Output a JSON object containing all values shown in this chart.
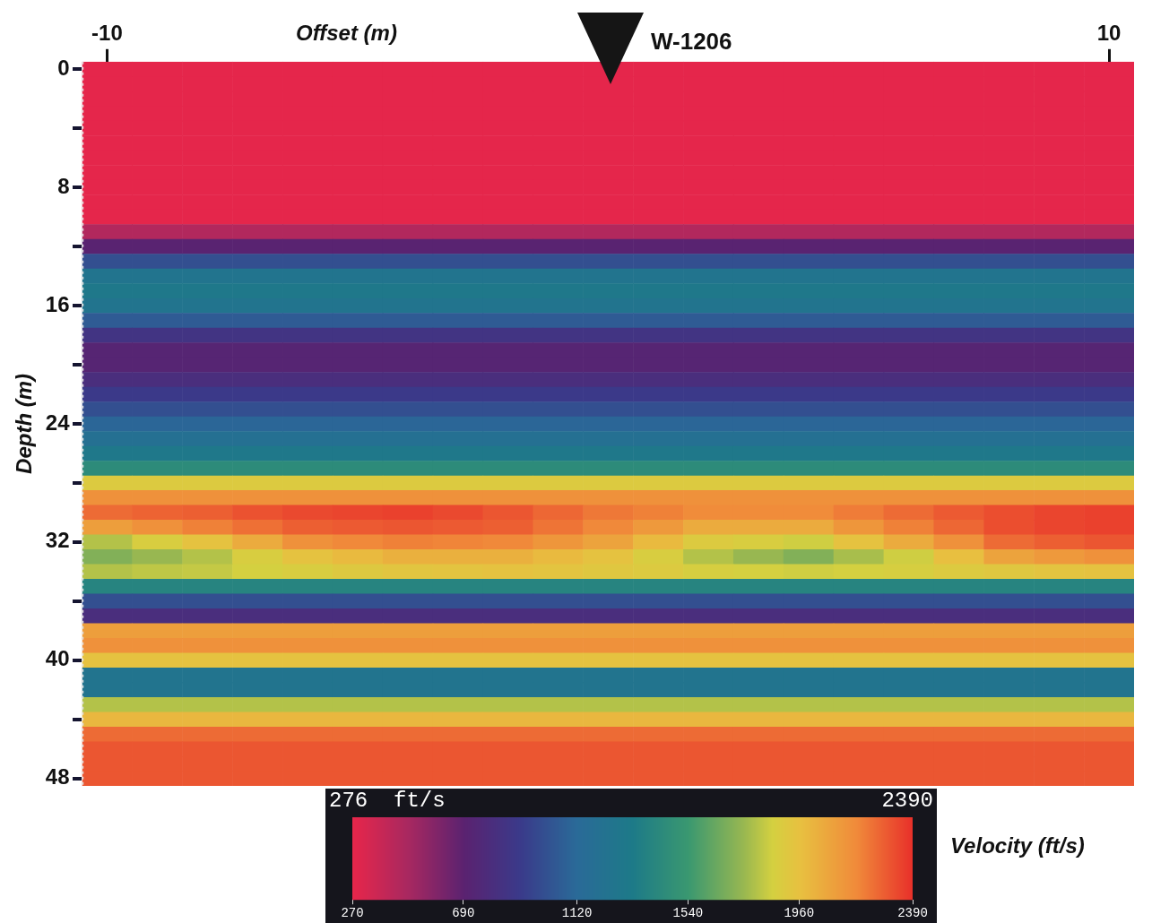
{
  "chart_data": {
    "type": "heatmap",
    "xlabel": "Offset (m)",
    "ylabel": "Depth (m)",
    "clabel": "Velocity (ft/s)",
    "categories": [
      "-10",
      null,
      null,
      null,
      null,
      null,
      null,
      null,
      null,
      null,
      null,
      null,
      null,
      null,
      null,
      null,
      null,
      null,
      null,
      null,
      "10"
    ],
    "y_categories": [
      "0",
      null,
      null,
      null,
      null,
      null,
      null,
      null,
      "8",
      null,
      null,
      null,
      null,
      null,
      null,
      null,
      "16",
      null,
      null,
      null,
      null,
      null,
      null,
      null,
      "24",
      null,
      null,
      null,
      null,
      null,
      null,
      null,
      "32",
      null,
      null,
      null,
      null,
      null,
      null,
      null,
      "40",
      null,
      null,
      null,
      null,
      null,
      null,
      null,
      "48"
    ],
    "clim": [
      270,
      2390
    ],
    "cticks": [
      270,
      690,
      1120,
      1540,
      1960,
      2390
    ],
    "annotations": [
      "W-1206",
      "276",
      "ft/s",
      "2390"
    ],
    "cells": [
      [
        280,
        280,
        280,
        280,
        280,
        280,
        280,
        280,
        280,
        280,
        280,
        280,
        280,
        280,
        280,
        280,
        280,
        280,
        280,
        280,
        280
      ],
      [
        280,
        280,
        280,
        280,
        280,
        280,
        280,
        280,
        280,
        280,
        280,
        280,
        280,
        280,
        280,
        280,
        280,
        280,
        280,
        280,
        280
      ],
      [
        280,
        280,
        280,
        280,
        280,
        280,
        280,
        280,
        280,
        280,
        280,
        280,
        280,
        280,
        280,
        280,
        280,
        280,
        280,
        280,
        280
      ],
      [
        280,
        280,
        280,
        280,
        280,
        280,
        280,
        280,
        280,
        280,
        280,
        280,
        280,
        280,
        280,
        280,
        280,
        280,
        280,
        280,
        280
      ],
      [
        280,
        280,
        280,
        280,
        280,
        280,
        280,
        280,
        280,
        280,
        280,
        280,
        280,
        280,
        280,
        280,
        280,
        280,
        280,
        280,
        280
      ],
      [
        280,
        280,
        280,
        280,
        280,
        280,
        280,
        280,
        280,
        280,
        280,
        280,
        280,
        280,
        280,
        280,
        280,
        280,
        280,
        280,
        280
      ],
      [
        280,
        280,
        280,
        280,
        280,
        280,
        280,
        280,
        280,
        280,
        280,
        280,
        280,
        280,
        280,
        280,
        280,
        280,
        280,
        280,
        280
      ],
      [
        280,
        280,
        280,
        280,
        280,
        280,
        280,
        280,
        280,
        280,
        280,
        280,
        280,
        280,
        280,
        280,
        280,
        280,
        280,
        280,
        280
      ],
      [
        280,
        280,
        280,
        280,
        280,
        280,
        280,
        280,
        280,
        280,
        280,
        280,
        280,
        280,
        280,
        280,
        280,
        280,
        280,
        280,
        280
      ],
      [
        280,
        280,
        280,
        280,
        280,
        280,
        280,
        280,
        280,
        280,
        280,
        280,
        280,
        280,
        280,
        280,
        280,
        280,
        280,
        280,
        280
      ],
      [
        280,
        280,
        280,
        280,
        280,
        280,
        280,
        280,
        280,
        280,
        280,
        280,
        280,
        280,
        280,
        280,
        280,
        280,
        280,
        280,
        280
      ],
      [
        450,
        450,
        450,
        450,
        450,
        450,
        450,
        450,
        450,
        450,
        450,
        450,
        450,
        450,
        450,
        450,
        450,
        450,
        450,
        450,
        450
      ],
      [
        700,
        700,
        700,
        700,
        700,
        700,
        700,
        700,
        700,
        700,
        700,
        700,
        700,
        700,
        700,
        700,
        700,
        700,
        700,
        700,
        700
      ],
      [
        1000,
        1000,
        1000,
        1000,
        1000,
        1000,
        1000,
        1000,
        1000,
        1000,
        1000,
        1000,
        1000,
        1000,
        1000,
        1000,
        1000,
        1000,
        1000,
        1000,
        1000
      ],
      [
        1250,
        1250,
        1250,
        1250,
        1250,
        1250,
        1250,
        1250,
        1250,
        1250,
        1250,
        1250,
        1250,
        1250,
        1250,
        1250,
        1250,
        1250,
        1250,
        1250,
        1250
      ],
      [
        1300,
        1300,
        1300,
        1300,
        1300,
        1300,
        1300,
        1300,
        1300,
        1300,
        1300,
        1300,
        1300,
        1300,
        1300,
        1300,
        1300,
        1300,
        1300,
        1300,
        1300
      ],
      [
        1250,
        1250,
        1250,
        1250,
        1250,
        1250,
        1250,
        1250,
        1250,
        1250,
        1250,
        1250,
        1250,
        1250,
        1250,
        1250,
        1250,
        1250,
        1250,
        1250,
        1250
      ],
      [
        1050,
        1050,
        1050,
        1050,
        1050,
        1050,
        1050,
        1050,
        1050,
        1050,
        1050,
        1050,
        1050,
        1050,
        1050,
        1050,
        1050,
        1050,
        1050,
        1050,
        1050
      ],
      [
        850,
        850,
        850,
        850,
        850,
        850,
        850,
        850,
        850,
        850,
        850,
        850,
        850,
        850,
        850,
        850,
        850,
        850,
        850,
        850,
        850
      ],
      [
        720,
        720,
        720,
        720,
        720,
        720,
        720,
        720,
        720,
        720,
        720,
        720,
        720,
        720,
        720,
        720,
        720,
        720,
        720,
        720,
        720
      ],
      [
        720,
        720,
        720,
        720,
        720,
        720,
        720,
        720,
        720,
        720,
        720,
        720,
        720,
        720,
        720,
        720,
        720,
        720,
        720,
        720,
        720
      ],
      [
        800,
        800,
        800,
        800,
        800,
        800,
        800,
        800,
        800,
        800,
        800,
        800,
        800,
        800,
        800,
        800,
        800,
        800,
        800,
        800,
        800
      ],
      [
        900,
        900,
        900,
        900,
        900,
        900,
        900,
        900,
        900,
        900,
        900,
        900,
        900,
        900,
        900,
        900,
        900,
        900,
        900,
        900,
        900
      ],
      [
        1000,
        1000,
        1000,
        1000,
        1000,
        1000,
        1000,
        1000,
        1000,
        1000,
        1000,
        1000,
        1000,
        1000,
        1000,
        1000,
        1000,
        1000,
        1000,
        1000,
        1000
      ],
      [
        1100,
        1100,
        1100,
        1100,
        1100,
        1100,
        1100,
        1100,
        1100,
        1100,
        1100,
        1100,
        1100,
        1100,
        1100,
        1100,
        1100,
        1100,
        1100,
        1100,
        1100
      ],
      [
        1200,
        1200,
        1200,
        1200,
        1200,
        1200,
        1200,
        1200,
        1200,
        1200,
        1200,
        1200,
        1200,
        1200,
        1200,
        1200,
        1200,
        1200,
        1200,
        1200,
        1200
      ],
      [
        1300,
        1300,
        1300,
        1300,
        1300,
        1300,
        1300,
        1300,
        1300,
        1300,
        1300,
        1300,
        1300,
        1300,
        1300,
        1300,
        1300,
        1300,
        1300,
        1300,
        1300
      ],
      [
        1450,
        1450,
        1450,
        1450,
        1450,
        1450,
        1450,
        1450,
        1450,
        1450,
        1450,
        1450,
        1450,
        1450,
        1450,
        1450,
        1450,
        1450,
        1450,
        1450,
        1450
      ],
      [
        1900,
        1900,
        1900,
        1900,
        1900,
        1900,
        1900,
        1900,
        1900,
        1900,
        1900,
        1900,
        1900,
        1900,
        1900,
        1900,
        1900,
        1900,
        1900,
        1900,
        1900
      ],
      [
        2150,
        2150,
        2150,
        2150,
        2150,
        2150,
        2150,
        2150,
        2150,
        2150,
        2150,
        2150,
        2150,
        2150,
        2150,
        2150,
        2150,
        2150,
        2150,
        2150,
        2150
      ],
      [
        2250,
        2270,
        2280,
        2310,
        2330,
        2340,
        2350,
        2330,
        2300,
        2260,
        2220,
        2200,
        2170,
        2170,
        2170,
        2210,
        2250,
        2290,
        2320,
        2340,
        2350
      ],
      [
        2100,
        2150,
        2200,
        2240,
        2280,
        2290,
        2300,
        2290,
        2280,
        2230,
        2180,
        2120,
        2050,
        2050,
        2050,
        2130,
        2200,
        2260,
        2320,
        2340,
        2350
      ],
      [
        1800,
        1880,
        1950,
        2050,
        2150,
        2180,
        2200,
        2190,
        2180,
        2130,
        2080,
        1990,
        1900,
        1880,
        1850,
        1950,
        2050,
        2150,
        2250,
        2280,
        2300
      ],
      [
        1700,
        1750,
        1800,
        1880,
        1950,
        1990,
        2030,
        2030,
        2030,
        1990,
        1950,
        1880,
        1800,
        1750,
        1700,
        1780,
        1850,
        1970,
        2080,
        2120,
        2150
      ],
      [
        1800,
        1820,
        1830,
        1860,
        1880,
        1910,
        1930,
        1940,
        1950,
        1940,
        1920,
        1900,
        1870,
        1860,
        1850,
        1860,
        1870,
        1900,
        1920,
        1940,
        1950
      ],
      [
        1400,
        1400,
        1400,
        1400,
        1400,
        1400,
        1400,
        1400,
        1400,
        1400,
        1400,
        1400,
        1400,
        1400,
        1400,
        1400,
        1400,
        1400,
        1400,
        1400,
        1400
      ],
      [
        1000,
        1000,
        1000,
        1000,
        1000,
        1000,
        1000,
        1000,
        1000,
        1000,
        1000,
        1000,
        1000,
        1000,
        1000,
        1000,
        1000,
        1000,
        1000,
        1000,
        1000
      ],
      [
        800,
        800,
        800,
        800,
        800,
        800,
        800,
        800,
        800,
        800,
        800,
        800,
        800,
        800,
        800,
        800,
        800,
        800,
        800,
        800,
        800
      ],
      [
        2100,
        2100,
        2100,
        2100,
        2100,
        2100,
        2100,
        2100,
        2100,
        2100,
        2100,
        2100,
        2100,
        2100,
        2100,
        2100,
        2100,
        2100,
        2100,
        2100,
        2100
      ],
      [
        2150,
        2150,
        2150,
        2150,
        2150,
        2150,
        2150,
        2150,
        2150,
        2150,
        2150,
        2150,
        2150,
        2150,
        2150,
        2150,
        2150,
        2150,
        2150,
        2150,
        2150
      ],
      [
        1950,
        1950,
        1950,
        1950,
        1950,
        1950,
        1950,
        1950,
        1950,
        1950,
        1950,
        1950,
        1950,
        1950,
        1950,
        1950,
        1950,
        1950,
        1950,
        1950,
        1950
      ],
      [
        1250,
        1250,
        1250,
        1250,
        1250,
        1250,
        1250,
        1250,
        1250,
        1250,
        1250,
        1250,
        1250,
        1250,
        1250,
        1250,
        1250,
        1250,
        1250,
        1250,
        1250
      ],
      [
        1250,
        1250,
        1250,
        1250,
        1250,
        1250,
        1250,
        1250,
        1250,
        1250,
        1250,
        1250,
        1250,
        1250,
        1250,
        1250,
        1250,
        1250,
        1250,
        1250,
        1250
      ],
      [
        1800,
        1800,
        1800,
        1800,
        1800,
        1800,
        1800,
        1800,
        1800,
        1800,
        1800,
        1800,
        1800,
        1800,
        1800,
        1800,
        1800,
        1800,
        1800,
        1800,
        1800
      ],
      [
        2000,
        2000,
        2000,
        2000,
        2000,
        2000,
        2000,
        2000,
        2000,
        2000,
        2000,
        2000,
        2000,
        2000,
        2000,
        2000,
        2000,
        2000,
        2000,
        2000,
        2000
      ],
      [
        2250,
        2250,
        2250,
        2250,
        2250,
        2250,
        2250,
        2250,
        2250,
        2250,
        2250,
        2250,
        2250,
        2250,
        2250,
        2250,
        2250,
        2250,
        2250,
        2250,
        2250
      ],
      [
        2300,
        2300,
        2300,
        2300,
        2300,
        2300,
        2300,
        2300,
        2300,
        2300,
        2300,
        2300,
        2300,
        2300,
        2300,
        2300,
        2300,
        2300,
        2300,
        2300,
        2300
      ],
      [
        2300,
        2300,
        2300,
        2300,
        2300,
        2300,
        2300,
        2300,
        2300,
        2300,
        2300,
        2300,
        2300,
        2300,
        2300,
        2300,
        2300,
        2300,
        2300,
        2300,
        2300
      ],
      [
        2300,
        2300,
        2300,
        2300,
        2300,
        2300,
        2300,
        2300,
        2300,
        2300,
        2300,
        2300,
        2300,
        2300,
        2300,
        2300,
        2300,
        2300,
        2300,
        2300,
        2300
      ]
    ]
  }
}
